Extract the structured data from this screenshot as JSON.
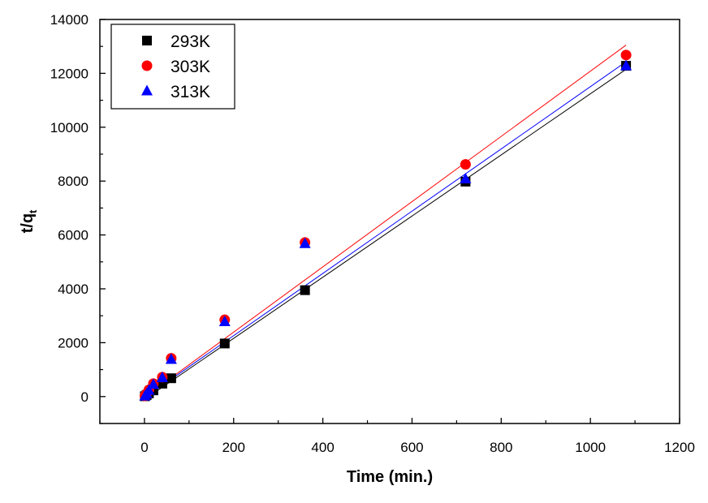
{
  "chart_data": {
    "type": "scatter",
    "title": "",
    "xlabel": "Time (min.)",
    "ylabel": {
      "main": "t/q",
      "sub": "t"
    },
    "xlim": [
      -100,
      1200
    ],
    "ylim": [
      -1000,
      14000
    ],
    "xticks": [
      0,
      200,
      400,
      600,
      800,
      1000,
      1200
    ],
    "yticks": [
      0,
      2000,
      4000,
      6000,
      8000,
      10000,
      12000,
      14000
    ],
    "xtick_labels": [
      "0",
      "200",
      "400",
      "600",
      "800",
      "1000",
      "1200"
    ],
    "ytick_labels": [
      "0",
      "2000",
      "4000",
      "6000",
      "8000",
      "10000",
      "12000",
      "14000"
    ],
    "grid": false,
    "legend_position": "top-left",
    "series": [
      {
        "name": "293K",
        "marker": "square",
        "color": "#000000",
        "x": [
          1,
          5,
          10,
          20,
          40,
          60,
          180,
          360,
          720,
          1080
        ],
        "y": [
          12,
          60,
          120,
          230,
          480,
          680,
          1970,
          3950,
          7980,
          12280
        ],
        "fit": {
          "x": [
            0,
            1080
          ],
          "y": [
            -110,
            12150
          ]
        }
      },
      {
        "name": "303K",
        "marker": "circle",
        "color": "#ff0000",
        "x": [
          1,
          5,
          10,
          20,
          40,
          60,
          180,
          360,
          720,
          1080
        ],
        "y": [
          25,
          110,
          250,
          480,
          720,
          1420,
          2850,
          5720,
          8620,
          12680
        ],
        "fit": {
          "x": [
            0,
            1080
          ],
          "y": [
            -30,
            13050
          ]
        }
      },
      {
        "name": "313K",
        "marker": "triangle",
        "color": "#0000ff",
        "x": [
          1,
          5,
          10,
          20,
          40,
          60,
          180,
          360,
          720,
          1080
        ],
        "y": [
          20,
          100,
          230,
          450,
          700,
          1380,
          2780,
          5680,
          8080,
          12280
        ],
        "fit": {
          "x": [
            0,
            1080
          ],
          "y": [
            -50,
            12430
          ]
        }
      }
    ]
  }
}
